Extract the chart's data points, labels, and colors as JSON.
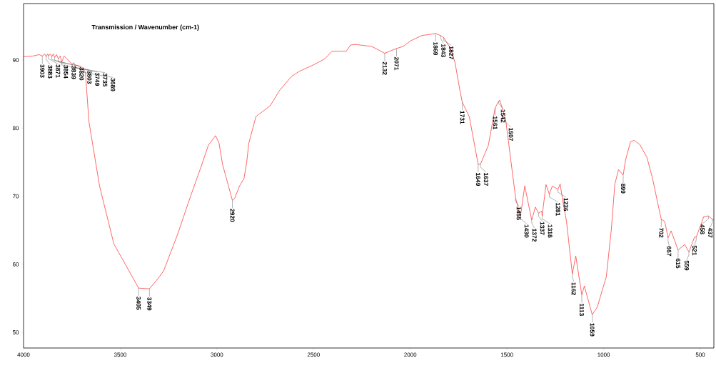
{
  "chart_data": {
    "type": "line",
    "title": "Transmission / Wavenumber (cm-1)",
    "xlim": [
      4000,
      430
    ],
    "ylim": [
      47.7,
      98.3
    ],
    "xticks": [
      4000,
      3500,
      3000,
      2500,
      2000,
      1500,
      1000,
      500
    ],
    "yticks": [
      50,
      60,
      70,
      80,
      90
    ],
    "grid": false,
    "legend": false,
    "marker": "none",
    "line_style": "solid",
    "series": [
      {
        "color": "#ff0000",
        "x": [
          4000,
          3950,
          3920,
          3903,
          3890,
          3883,
          3875,
          3871,
          3862,
          3854,
          3846,
          3839,
          3830,
          3820,
          3810,
          3803,
          3790,
          3749,
          3740,
          3735,
          3720,
          3705,
          3689,
          3680,
          3662,
          3607,
          3533,
          3405,
          3349,
          3313,
          3276,
          3202,
          3140,
          3081,
          3044,
          3007,
          2989,
          2971,
          2920,
          2908,
          2883,
          2860,
          2846,
          2835,
          2798,
          2724,
          2677,
          2614,
          2577,
          2493,
          2441,
          2405,
          2331,
          2309,
          2283,
          2258,
          2199,
          2132,
          2071,
          2037,
          2000,
          1941,
          1869,
          1843,
          1827,
          1794,
          1769,
          1743,
          1731,
          1695,
          1649,
          1637,
          1596,
          1561,
          1542,
          1537,
          1507,
          1455,
          1430,
          1408,
          1372,
          1353,
          1337,
          1320,
          1318,
          1298,
          1281,
          1265,
          1236,
          1225,
          1210,
          1192,
          1162,
          1144,
          1113,
          1100,
          1059,
          1033,
          986,
          960,
          942,
          923,
          899,
          886,
          861,
          842,
          813,
          776,
          747,
          721,
          702,
          684,
          667,
          651,
          615,
          581,
          559,
          530,
          521,
          482,
          458,
          437,
          430
        ],
        "values": [
          90.5,
          90.6,
          90.8,
          90.6,
          90.9,
          90.5,
          90.9,
          90.6,
          90.9,
          90.5,
          90.9,
          90.4,
          90.8,
          90.2,
          90.6,
          89.7,
          90.6,
          89.4,
          89.6,
          89.3,
          89.2,
          89.0,
          88.6,
          88.2,
          81.0,
          71.5,
          63.0,
          56.5,
          56.4,
          57.6,
          59.0,
          64.5,
          69.7,
          74.4,
          77.5,
          78.9,
          77.8,
          74.7,
          69.4,
          69.7,
          71.5,
          72.6,
          75.0,
          77.8,
          81.7,
          83.3,
          85.5,
          87.6,
          88.3,
          89.4,
          90.2,
          91.3,
          91.3,
          92.2,
          92.3,
          92.2,
          92.0,
          91.0,
          91.7,
          92.0,
          92.8,
          93.6,
          93.9,
          93.6,
          93.3,
          91.8,
          89.7,
          85.5,
          83.8,
          81.7,
          74.7,
          74.7,
          77.5,
          83.0,
          84.0,
          84.1,
          81.3,
          69.7,
          67.1,
          71.5,
          66.5,
          68.4,
          67.5,
          67.8,
          67.1,
          71.7,
          70.3,
          71.5,
          71.0,
          71.8,
          69.1,
          66.3,
          58.6,
          61.2,
          55.5,
          56.8,
          52.6,
          53.7,
          58.2,
          65.2,
          71.8,
          73.9,
          73.1,
          75.4,
          78.0,
          78.2,
          77.6,
          75.7,
          72.6,
          69.1,
          66.6,
          66.3,
          63.9,
          64.9,
          62.1,
          62.9,
          61.8,
          64.0,
          64.0,
          67.0,
          67.1,
          66.6,
          66.5
        ]
      }
    ],
    "annotations": [
      {
        "text": "3903",
        "x": 3903,
        "y": 90.6
      },
      {
        "text": "3883",
        "x": 3883,
        "y": 90.5
      },
      {
        "text": "3871",
        "x": 3871,
        "y": 90.6
      },
      {
        "text": "3854",
        "x": 3854,
        "y": 90.5
      },
      {
        "text": "3839",
        "x": 3839,
        "y": 90.4
      },
      {
        "text": "3820",
        "x": 3820,
        "y": 90.2
      },
      {
        "text": "3803",
        "x": 3803,
        "y": 89.7
      },
      {
        "text": "3749",
        "x": 3749,
        "y": 89.4
      },
      {
        "text": "3735",
        "x": 3735,
        "y": 89.3
      },
      {
        "text": "3689",
        "x": 3689,
        "y": 88.6
      },
      {
        "text": "3405",
        "x": 3405,
        "y": 56.5
      },
      {
        "text": "3349",
        "x": 3349,
        "y": 56.4
      },
      {
        "text": "2920",
        "x": 2920,
        "y": 69.4
      },
      {
        "text": "2132",
        "x": 2132,
        "y": 91.0
      },
      {
        "text": "2071",
        "x": 2071,
        "y": 91.7
      },
      {
        "text": "1869",
        "x": 1869,
        "y": 93.9
      },
      {
        "text": "1843",
        "x": 1843,
        "y": 93.6
      },
      {
        "text": "1827",
        "x": 1827,
        "y": 93.3
      },
      {
        "text": "1731",
        "x": 1731,
        "y": 83.8
      },
      {
        "text": "1649",
        "x": 1649,
        "y": 74.7
      },
      {
        "text": "1637",
        "x": 1637,
        "y": 74.7
      },
      {
        "text": "1561",
        "x": 1561,
        "y": 83.0
      },
      {
        "text": "1542",
        "x": 1542,
        "y": 84.0
      },
      {
        "text": "1507",
        "x": 1507,
        "y": 81.3
      },
      {
        "text": "1455",
        "x": 1455,
        "y": 69.7
      },
      {
        "text": "1430",
        "x": 1430,
        "y": 67.1
      },
      {
        "text": "1372",
        "x": 1372,
        "y": 66.5
      },
      {
        "text": "1337",
        "x": 1337,
        "y": 67.5
      },
      {
        "text": "1318",
        "x": 1318,
        "y": 67.1
      },
      {
        "text": "1281",
        "x": 1281,
        "y": 70.3
      },
      {
        "text": "1236",
        "x": 1236,
        "y": 71.0
      },
      {
        "text": "1162",
        "x": 1162,
        "y": 58.6
      },
      {
        "text": "1113",
        "x": 1113,
        "y": 55.5
      },
      {
        "text": "1059",
        "x": 1059,
        "y": 52.6
      },
      {
        "text": "899",
        "x": 899,
        "y": 73.1
      },
      {
        "text": "702",
        "x": 702,
        "y": 66.6
      },
      {
        "text": "667",
        "x": 667,
        "y": 63.9
      },
      {
        "text": "615",
        "x": 615,
        "y": 62.1
      },
      {
        "text": "559",
        "x": 559,
        "y": 61.8
      },
      {
        "text": "521",
        "x": 521,
        "y": 64.0
      },
      {
        "text": "458",
        "x": 458,
        "y": 67.1
      },
      {
        "text": "437",
        "x": 437,
        "y": 66.6
      }
    ]
  }
}
